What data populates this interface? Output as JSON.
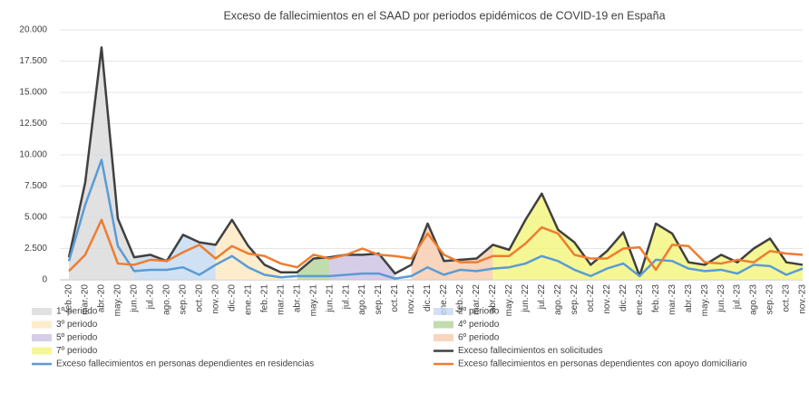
{
  "chart_data": {
    "type": "line",
    "title": "Exceso de fallecimientos en el SAAD por periodos epidémicos de COVID-19 en España",
    "categories": [
      "feb.-20",
      "mar.-20",
      "abr.-20",
      "may.-20",
      "jun.-20",
      "jul.-20",
      "ago.-20",
      "sep.-20",
      "oct.-20",
      "nov.-20",
      "dic.-20",
      "ene.-21",
      "feb.-21",
      "mar.-21",
      "abr.-21",
      "may.-21",
      "jun.-21",
      "jul.-21",
      "ago.-21",
      "sep.-21",
      "oct.-21",
      "nov.-21",
      "dic.-21",
      "ene.-22",
      "feb.-22",
      "mar.-22",
      "abr.-22",
      "may.-22",
      "jun.-22",
      "jul.-22",
      "ago.-22",
      "sep.-22",
      "oct.-22",
      "nov.-22",
      "dic.-22",
      "ene.-23",
      "feb.-23",
      "mar.-23",
      "abr.-23",
      "may.-23",
      "jun.-23",
      "jul.-23",
      "ago.-23",
      "sep.-23",
      "oct.-23",
      "nov.-23"
    ],
    "series": [
      {
        "name": "Exceso fallecimientos en solicitudes",
        "color": "#404040",
        "values": [
          1800,
          7800,
          18600,
          4900,
          1800,
          2000,
          1500,
          3600,
          3000,
          2800,
          4800,
          2700,
          1200,
          600,
          600,
          1700,
          1800,
          2000,
          2000,
          2100,
          500,
          1200,
          4500,
          1500,
          1600,
          1700,
          2800,
          2400,
          4800,
          6900,
          4000,
          3000,
          1200,
          2300,
          3800,
          300,
          4500,
          3700,
          1400,
          1200,
          2000,
          1400,
          2500,
          3300,
          1400,
          1200
        ]
      },
      {
        "name": "Exceso fallecimientos en personas dependientes en residencias",
        "color": "#5b9bd5",
        "values": [
          1500,
          6000,
          9600,
          2700,
          700,
          800,
          800,
          1000,
          400,
          1200,
          1900,
          1000,
          400,
          200,
          300,
          300,
          300,
          400,
          500,
          500,
          100,
          300,
          1000,
          400,
          800,
          700,
          900,
          1000,
          1300,
          1900,
          1500,
          800,
          300,
          900,
          1300,
          300,
          1600,
          1500,
          900,
          700,
          800,
          500,
          1200,
          1100,
          400,
          900
        ]
      },
      {
        "name": "Exceso fallecimientos en personas dependientes con apoyo domiciliario",
        "color": "#ed7d31",
        "values": [
          700,
          2000,
          4800,
          1300,
          1200,
          1600,
          1500,
          2200,
          2800,
          1700,
          2700,
          2100,
          1900,
          1300,
          1000,
          2000,
          1700,
          2000,
          2500,
          2000,
          1900,
          1700,
          3700,
          2000,
          1400,
          1400,
          1900,
          1900,
          2900,
          4200,
          3700,
          2000,
          1700,
          1700,
          2500,
          2600,
          800,
          2800,
          2700,
          1400,
          1300,
          1600,
          1400,
          2300,
          2100,
          2000
        ]
      }
    ],
    "periods": [
      {
        "name": "1º periodo",
        "color": "#d9d9d9",
        "range": [
          0,
          4
        ]
      },
      {
        "name": "2º periodo",
        "color": "#c5d9f1",
        "range": [
          4,
          9
        ]
      },
      {
        "name": "3º periodo",
        "color": "#fde9c0",
        "range": [
          9,
          13
        ]
      },
      {
        "name": "4º periodo",
        "color": "#b4d39a",
        "range": [
          14,
          16
        ]
      },
      {
        "name": "5º periodo",
        "color": "#ccc0e4",
        "range": [
          16,
          20
        ]
      },
      {
        "name": "6º periodo",
        "color": "#f8cbad",
        "range": [
          21,
          26
        ]
      },
      {
        "name": "7º periodo",
        "color": "#f3f57a",
        "range": [
          26,
          45
        ]
      }
    ],
    "ylim": [
      0,
      20000
    ],
    "yticks": [
      0,
      {
        "value": 2500,
        "label": "2.500"
      },
      {
        "value": 5000,
        "label": "5.000"
      },
      {
        "value": 7500,
        "label": "7.500"
      },
      {
        "value": 10000,
        "label": "10.000"
      },
      {
        "value": 12500,
        "label": "12.500"
      },
      {
        "value": 15000,
        "label": "15.000"
      },
      {
        "value": 17500,
        "label": "17.500"
      },
      {
        "value": 20000,
        "label": "20.000"
      }
    ],
    "grid": true
  }
}
